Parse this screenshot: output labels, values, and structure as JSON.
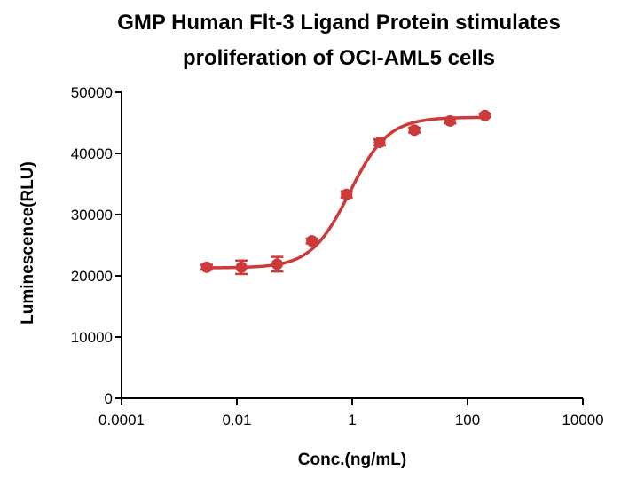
{
  "chart_data": {
    "type": "scatter",
    "title_lines": [
      "GMP Human Flt-3 Ligand Protein stimulates",
      "proliferation of OCI-AML5 cells"
    ],
    "xlabel": "Conc.(ng/mL)",
    "ylabel": "Luminescence(RLU)",
    "x_scale": "log",
    "xlim": [
      0.0001,
      10000
    ],
    "ylim": [
      0,
      50000
    ],
    "x_ticks": [
      0.0001,
      0.01,
      1,
      100,
      10000
    ],
    "x_tick_labels": [
      "0.0001",
      "0.01",
      "1",
      "100",
      "10000"
    ],
    "y_ticks": [
      0,
      10000,
      20000,
      30000,
      40000,
      50000
    ],
    "y_tick_labels": [
      "0",
      "10000",
      "20000",
      "30000",
      "40000",
      "50000"
    ],
    "grid": false,
    "color": "#cc3a3a",
    "series": [
      {
        "x": [
          0.003,
          0.012,
          0.05,
          0.2,
          0.8,
          3,
          12,
          50,
          200
        ],
        "y": [
          21400,
          21400,
          21900,
          25700,
          33300,
          41800,
          43800,
          45300,
          46200
        ],
        "error": [
          400,
          1100,
          1200,
          400,
          500,
          500,
          400,
          400,
          300
        ],
        "fit": {
          "model": "4PL",
          "bottom": 21300,
          "top": 45900,
          "ec50": 0.9,
          "hill": 1.3
        }
      }
    ]
  }
}
